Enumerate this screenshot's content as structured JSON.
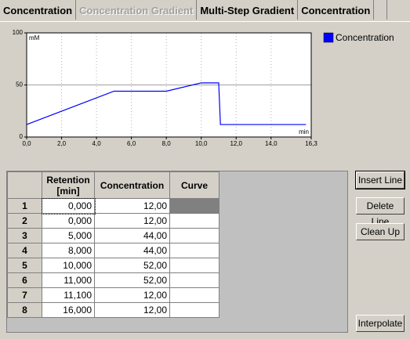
{
  "tabs": [
    "Concentration",
    "Concentration Gradient",
    "Multi-Step Gradient",
    "Concentration"
  ],
  "active_tab": 2,
  "chart_data": {
    "type": "line",
    "ylabel": "mM",
    "xlabel": "min",
    "xlim": [
      0,
      16.3
    ],
    "ylim": [
      0,
      100
    ],
    "xticks": [
      {
        "value": 0,
        "label": "0,0"
      },
      {
        "value": 2,
        "label": "2,0"
      },
      {
        "value": 4,
        "label": "4,0"
      },
      {
        "value": 6,
        "label": "6,0"
      },
      {
        "value": 8,
        "label": "8,0"
      },
      {
        "value": 10,
        "label": "10,0"
      },
      {
        "value": 12,
        "label": "12,0"
      },
      {
        "value": 14,
        "label": "14,0"
      },
      {
        "value": 16.3,
        "label": "16,3"
      }
    ],
    "yticks": [
      0,
      50,
      100
    ],
    "grid": true,
    "x": [
      0,
      5,
      8,
      10,
      11,
      11.1,
      16
    ],
    "series": [
      {
        "name": "Concentration",
        "color": "#0000ff",
        "values": [
          12,
          44,
          44,
          52,
          52,
          12,
          12
        ]
      }
    ]
  },
  "table": {
    "columns": [
      "Retention [min]",
      "Concentration",
      "Curve"
    ],
    "rows": [
      {
        "label": "1",
        "retention": "0,000",
        "concentration": "12,00"
      },
      {
        "label": "2",
        "retention": "0,000",
        "concentration": "12,00"
      },
      {
        "label": "3",
        "retention": "5,000",
        "concentration": "44,00"
      },
      {
        "label": "4",
        "retention": "8,000",
        "concentration": "44,00"
      },
      {
        "label": "5",
        "retention": "10,000",
        "concentration": "52,00"
      },
      {
        "label": "6",
        "retention": "11,000",
        "concentration": "52,00"
      },
      {
        "label": "7",
        "retention": "11,100",
        "concentration": "12,00"
      },
      {
        "label": "8",
        "retention": "16,000",
        "concentration": "12,00"
      }
    ]
  },
  "buttons": [
    "Insert Line",
    "Delete Line",
    "Clean Up",
    "Interpolate"
  ]
}
